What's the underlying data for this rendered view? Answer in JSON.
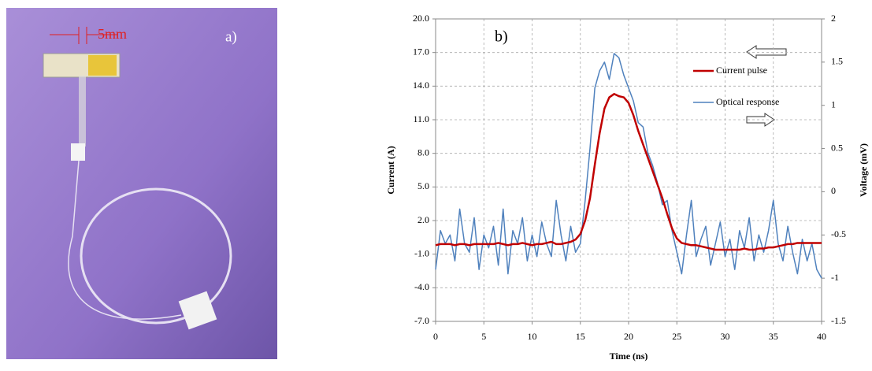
{
  "photo": {
    "scale_label": "5mm",
    "panel_label": "a)"
  },
  "chart_data": {
    "type": "line",
    "panel_label": "b)",
    "xlabel": "Time (ns)",
    "ylabel": "Current (A)",
    "y2label": "Voltage (mV)",
    "grid": true,
    "xlim": [
      0,
      40
    ],
    "xticks": [
      0,
      5,
      10,
      15,
      20,
      25,
      30,
      35,
      40
    ],
    "ylim": [
      -7,
      20
    ],
    "yticks": [
      {
        "value": -7,
        "label": "-7.0"
      },
      {
        "value": -4,
        "label": "-4.0"
      },
      {
        "value": -1,
        "label": "-1.0"
      },
      {
        "value": 2,
        "label": "2.0"
      },
      {
        "value": 5,
        "label": "5.0"
      },
      {
        "value": 8,
        "label": "8.0"
      },
      {
        "value": 11,
        "label": "11.0"
      },
      {
        "value": 14,
        "label": "14.0"
      },
      {
        "value": 17,
        "label": "17.0"
      },
      {
        "value": 20,
        "label": "20.0"
      }
    ],
    "y2lim": [
      -1.5,
      2
    ],
    "y2ticks": [
      -1.5,
      -1,
      -0.5,
      0,
      0.5,
      1,
      1.5,
      2
    ],
    "x": [
      0,
      0.5,
      1,
      1.5,
      2,
      2.5,
      3,
      3.5,
      4,
      4.5,
      5,
      5.5,
      6,
      6.5,
      7,
      7.5,
      8,
      8.5,
      9,
      9.5,
      10,
      10.5,
      11,
      11.5,
      12,
      12.5,
      13,
      13.5,
      14,
      14.5,
      15,
      15.5,
      16,
      16.5,
      17,
      17.5,
      18,
      18.5,
      19,
      19.5,
      20,
      20.5,
      21,
      21.5,
      22,
      22.5,
      23,
      23.5,
      24,
      24.5,
      25,
      25.5,
      26,
      26.5,
      27,
      27.5,
      28,
      28.5,
      29,
      29.5,
      30,
      30.5,
      31,
      31.5,
      32,
      32.5,
      33,
      33.5,
      34,
      34.5,
      35,
      35.5,
      36,
      36.5,
      37,
      37.5,
      38,
      38.5,
      39,
      39.5,
      40
    ],
    "series": [
      {
        "name": "Current pulse",
        "color": "#c00000",
        "width": 2.5,
        "values": [
          -0.2,
          -0.1,
          -0.1,
          -0.1,
          -0.2,
          -0.1,
          -0.1,
          -0.2,
          -0.1,
          -0.1,
          -0.1,
          -0.1,
          -0.1,
          0.0,
          -0.1,
          -0.2,
          -0.1,
          -0.1,
          0.0,
          -0.1,
          -0.2,
          -0.1,
          -0.1,
          0.0,
          0.1,
          -0.1,
          -0.1,
          0.0,
          0.1,
          0.3,
          0.8,
          2.0,
          4.0,
          7.0,
          9.8,
          12.0,
          13.0,
          13.3,
          13.1,
          13.0,
          12.5,
          11.4,
          10.0,
          8.8,
          7.6,
          6.4,
          5.2,
          4.0,
          2.6,
          1.3,
          0.4,
          0.0,
          -0.1,
          -0.2,
          -0.2,
          -0.3,
          -0.4,
          -0.5,
          -0.6,
          -0.6,
          -0.6,
          -0.6,
          -0.6,
          -0.6,
          -0.5,
          -0.6,
          -0.6,
          -0.5,
          -0.5,
          -0.4,
          -0.4,
          -0.3,
          -0.2,
          -0.1,
          -0.1,
          0.0,
          0.0,
          0.0,
          0.0,
          0.0,
          0.0
        ]
      },
      {
        "name": "Optical response",
        "color": "#4f81bd",
        "width": 1.5,
        "axis": "y2",
        "values": [
          -0.9,
          -0.45,
          -0.6,
          -0.5,
          -0.8,
          -0.2,
          -0.6,
          -0.7,
          -0.3,
          -0.9,
          -0.5,
          -0.65,
          -0.4,
          -0.85,
          -0.2,
          -0.95,
          -0.45,
          -0.6,
          -0.3,
          -0.8,
          -0.5,
          -0.75,
          -0.35,
          -0.6,
          -0.75,
          -0.1,
          -0.5,
          -0.8,
          -0.4,
          -0.7,
          -0.6,
          -0.1,
          0.5,
          1.2,
          1.4,
          1.5,
          1.3,
          1.6,
          1.55,
          1.35,
          1.2,
          1.05,
          0.8,
          0.75,
          0.45,
          0.3,
          0.1,
          -0.15,
          -0.1,
          -0.45,
          -0.7,
          -0.95,
          -0.5,
          -0.1,
          -0.75,
          -0.55,
          -0.4,
          -0.85,
          -0.6,
          -0.35,
          -0.75,
          -0.55,
          -0.9,
          -0.45,
          -0.65,
          -0.3,
          -0.8,
          -0.5,
          -0.7,
          -0.45,
          -0.1,
          -0.6,
          -0.8,
          -0.4,
          -0.7,
          -0.95,
          -0.55,
          -0.8,
          -0.6,
          -0.9,
          -1.0
        ]
      }
    ]
  }
}
